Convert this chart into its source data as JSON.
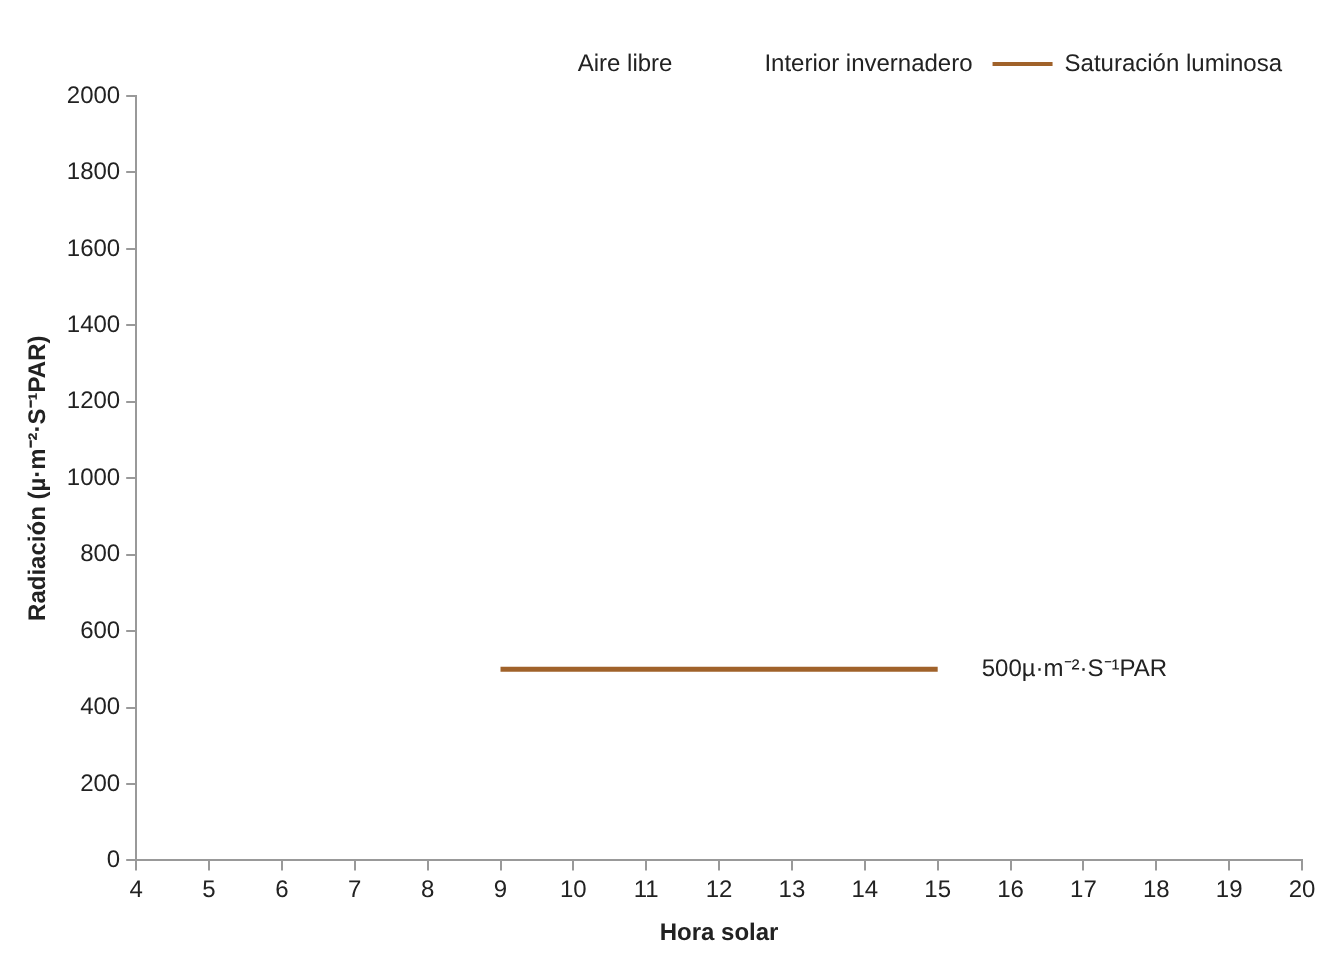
{
  "chart_data": {
    "type": "line",
    "xlabel": "Hora solar",
    "ylabel": "Radiación (µ·m⁻²·S⁻¹PAR)",
    "xlim": [
      4,
      20
    ],
    "xticks": [
      4,
      5,
      6,
      7,
      8,
      9,
      10,
      11,
      12,
      13,
      14,
      15,
      16,
      17,
      18,
      19,
      20
    ],
    "ylim": [
      0,
      2000
    ],
    "yticks": [
      0,
      200,
      400,
      600,
      800,
      1000,
      1200,
      1400,
      1600,
      1800,
      2000
    ],
    "grid": false,
    "legend": "top right",
    "marker": "none",
    "line_style": "solid",
    "series": [
      {
        "name": "Aire libre"
      },
      {
        "name": "Interior invernadero"
      },
      {
        "name": "Saturación luminosa",
        "color": "#a0622a",
        "x": [
          9,
          15
        ],
        "values": [
          500,
          500
        ]
      }
    ],
    "annotations": [
      {
        "text": "500µ·m⁻²·S⁻¹PAR",
        "x": 15,
        "y": 500
      }
    ]
  }
}
